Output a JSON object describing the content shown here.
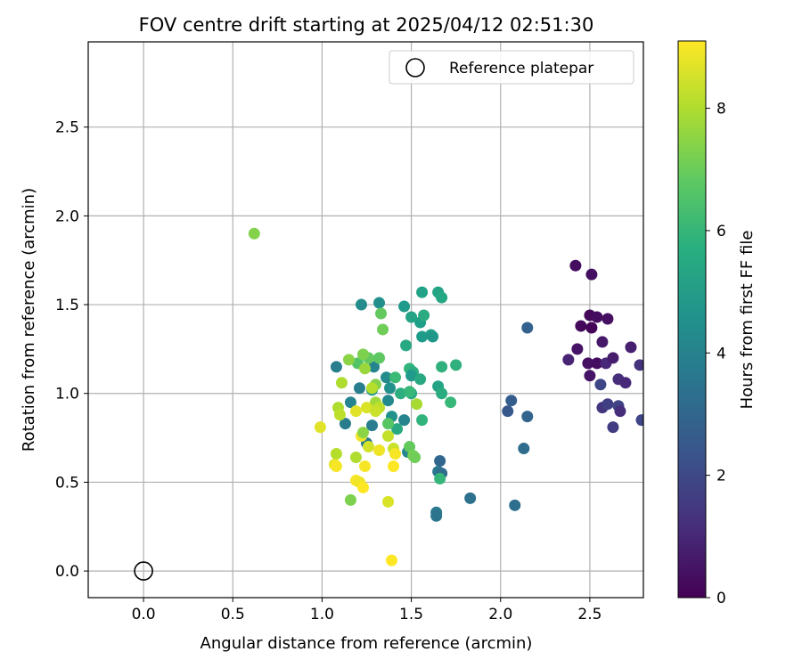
{
  "chart_data": {
    "type": "scatter",
    "title": "FOV centre drift starting at 2025/04/12 02:51:30",
    "xlabel": "Angular distance from reference (arcmin)",
    "ylabel": "Rotation from reference (arcmin)",
    "xlim": [
      -0.31,
      2.8
    ],
    "ylim": [
      -0.15,
      2.98
    ],
    "xticks": [
      0.0,
      0.5,
      1.0,
      1.5,
      2.0,
      2.5
    ],
    "xtick_labels": [
      "0.0",
      "0.5",
      "1.0",
      "1.5",
      "2.0",
      "2.5"
    ],
    "yticks": [
      0.0,
      0.5,
      1.0,
      1.5,
      2.0,
      2.5
    ],
    "ytick_labels": [
      "0.0",
      "0.5",
      "1.0",
      "1.5",
      "2.0",
      "2.5"
    ],
    "grid": true,
    "legend": {
      "position": "top-right",
      "entries": [
        {
          "label": "Reference platepar",
          "marker": "open-circle",
          "color": "#000000"
        }
      ]
    },
    "reference_point": {
      "x": 0.0,
      "y": 0.0
    },
    "colorbar": {
      "label": "Hours from first FF file",
      "range": [
        0,
        9.1
      ],
      "ticks": [
        0,
        2,
        4,
        6,
        8
      ],
      "tick_labels": [
        "0",
        "2",
        "4",
        "6",
        "8"
      ],
      "colormap": "viridis"
    },
    "points": [
      [
        2.42,
        1.72,
        0.3
      ],
      [
        2.51,
        1.67,
        0.4
      ],
      [
        2.5,
        1.44,
        0.2
      ],
      [
        2.54,
        1.43,
        0.3
      ],
      [
        2.6,
        1.42,
        0.4
      ],
      [
        2.45,
        1.38,
        0.2
      ],
      [
        2.51,
        1.37,
        0.1
      ],
      [
        2.43,
        1.25,
        0.5
      ],
      [
        2.57,
        1.29,
        0.6
      ],
      [
        2.38,
        1.19,
        0.9
      ],
      [
        2.49,
        1.17,
        0.4
      ],
      [
        2.54,
        1.17,
        0.3
      ],
      [
        2.59,
        1.17,
        1.0
      ],
      [
        2.63,
        1.2,
        0.7
      ],
      [
        2.5,
        1.1,
        0.5
      ],
      [
        2.56,
        1.05,
        1.9
      ],
      [
        2.66,
        1.08,
        1.2
      ],
      [
        2.7,
        1.06,
        1.0
      ],
      [
        2.73,
        1.26,
        0.8
      ],
      [
        2.78,
        1.16,
        1.3
      ],
      [
        2.57,
        0.92,
        1.4
      ],
      [
        2.6,
        0.94,
        1.7
      ],
      [
        2.66,
        0.93,
        1.8
      ],
      [
        2.67,
        0.9,
        1.2
      ],
      [
        2.63,
        0.81,
        1.6
      ],
      [
        2.79,
        0.85,
        1.9
      ],
      [
        2.15,
        1.37,
        2.8
      ],
      [
        2.04,
        0.9,
        2.5
      ],
      [
        2.06,
        0.96,
        2.7
      ],
      [
        2.15,
        0.87,
        2.9
      ],
      [
        2.13,
        0.69,
        3.2
      ],
      [
        2.08,
        0.37,
        3.3
      ],
      [
        1.83,
        0.41,
        3.4
      ],
      [
        1.66,
        0.62,
        3.0
      ],
      [
        1.65,
        0.56,
        3.6
      ],
      [
        1.67,
        0.55,
        3.2
      ],
      [
        1.64,
        0.33,
        3.7
      ],
      [
        1.64,
        0.31,
        3.5
      ],
      [
        1.56,
        1.57,
        5.2
      ],
      [
        1.65,
        1.57,
        5.3
      ],
      [
        1.67,
        1.54,
        5.4
      ],
      [
        1.32,
        1.51,
        4.5
      ],
      [
        1.22,
        1.5,
        4.4
      ],
      [
        1.46,
        1.49,
        4.9
      ],
      [
        1.55,
        1.4,
        5.1
      ],
      [
        1.5,
        1.43,
        5.3
      ],
      [
        1.57,
        1.44,
        5.6
      ],
      [
        1.61,
        1.33,
        5.2
      ],
      [
        1.56,
        1.32,
        5.0
      ],
      [
        1.62,
        1.32,
        4.8
      ],
      [
        1.47,
        1.27,
        5.5
      ],
      [
        1.67,
        1.15,
        5.8
      ],
      [
        1.75,
        1.16,
        5.8
      ],
      [
        1.49,
        1.14,
        5.9
      ],
      [
        1.51,
        1.12,
        5.6
      ],
      [
        1.5,
        1.1,
        4.9
      ],
      [
        1.55,
        1.08,
        5.5
      ],
      [
        1.65,
        1.04,
        5.3
      ],
      [
        1.67,
        1.0,
        5.6
      ],
      [
        1.72,
        0.95,
        6.1
      ],
      [
        1.36,
        1.09,
        4.4
      ],
      [
        1.41,
        1.09,
        6.2
      ],
      [
        1.38,
        1.03,
        4.6
      ],
      [
        1.37,
        0.96,
        4.3
      ],
      [
        1.44,
        1.0,
        5.7
      ],
      [
        1.5,
        1.0,
        5.5
      ],
      [
        1.49,
        1.01,
        6.1
      ],
      [
        1.56,
        0.85,
        5.9
      ],
      [
        1.46,
        0.85,
        4.1
      ],
      [
        1.42,
        0.8,
        5.5
      ],
      [
        1.28,
        1.02,
        4.7
      ],
      [
        1.21,
        1.03,
        3.9
      ],
      [
        1.16,
        0.95,
        4.1
      ],
      [
        1.13,
        0.83,
        3.8
      ],
      [
        1.08,
        1.15,
        3.9
      ],
      [
        1.29,
        1.15,
        4.1
      ],
      [
        1.26,
        1.2,
        6.9
      ],
      [
        1.2,
        1.17,
        6.6
      ],
      [
        1.23,
        1.22,
        7.3
      ],
      [
        1.24,
        1.14,
        7.7
      ],
      [
        1.15,
        1.19,
        7.5
      ],
      [
        1.32,
        1.2,
        6.8
      ],
      [
        1.33,
        1.45,
        6.9
      ],
      [
        1.34,
        1.36,
        7.1
      ],
      [
        1.3,
        1.05,
        7.4
      ],
      [
        1.11,
        1.06,
        8.0
      ],
      [
        1.28,
        1.03,
        8.1
      ],
      [
        1.3,
        0.95,
        7.8
      ],
      [
        1.39,
        0.87,
        4.6
      ],
      [
        1.25,
        0.72,
        3.7
      ],
      [
        1.28,
        0.82,
        3.9
      ],
      [
        1.37,
        0.83,
        6.7
      ],
      [
        1.09,
        0.92,
        8.0
      ],
      [
        1.1,
        0.88,
        8.2
      ],
      [
        1.19,
        0.9,
        8.7
      ],
      [
        1.25,
        0.92,
        8.6
      ],
      [
        1.32,
        0.92,
        8.2
      ],
      [
        1.3,
        0.9,
        8.4
      ],
      [
        1.22,
        0.76,
        8.9
      ],
      [
        1.26,
        0.7,
        8.5
      ],
      [
        1.23,
        0.78,
        7.5
      ],
      [
        1.37,
        0.76,
        8.3
      ],
      [
        0.99,
        0.81,
        8.7
      ],
      [
        1.08,
        0.66,
        8.1
      ],
      [
        1.19,
        0.64,
        8.0
      ],
      [
        1.32,
        0.68,
        8.9
      ],
      [
        1.4,
        0.69,
        8.4
      ],
      [
        1.41,
        0.66,
        9.0
      ],
      [
        1.4,
        0.59,
        9.1
      ],
      [
        1.07,
        0.6,
        8.8
      ],
      [
        1.08,
        0.59,
        9.0
      ],
      [
        1.24,
        0.59,
        9.0
      ],
      [
        1.19,
        0.51,
        9.0
      ],
      [
        1.21,
        0.5,
        8.9
      ],
      [
        1.23,
        0.47,
        9.1
      ],
      [
        1.16,
        0.4,
        7.3
      ],
      [
        1.37,
        0.39,
        8.6
      ],
      [
        1.39,
        0.06,
        9.1
      ],
      [
        1.48,
        0.67,
        4.2
      ],
      [
        1.49,
        0.7,
        6.9
      ],
      [
        1.51,
        0.65,
        7.2
      ],
      [
        1.52,
        0.64,
        7.1
      ],
      [
        1.66,
        0.52,
        6.0
      ],
      [
        1.53,
        0.94,
        7.9
      ],
      [
        0.62,
        1.9,
        7.4
      ]
    ]
  }
}
